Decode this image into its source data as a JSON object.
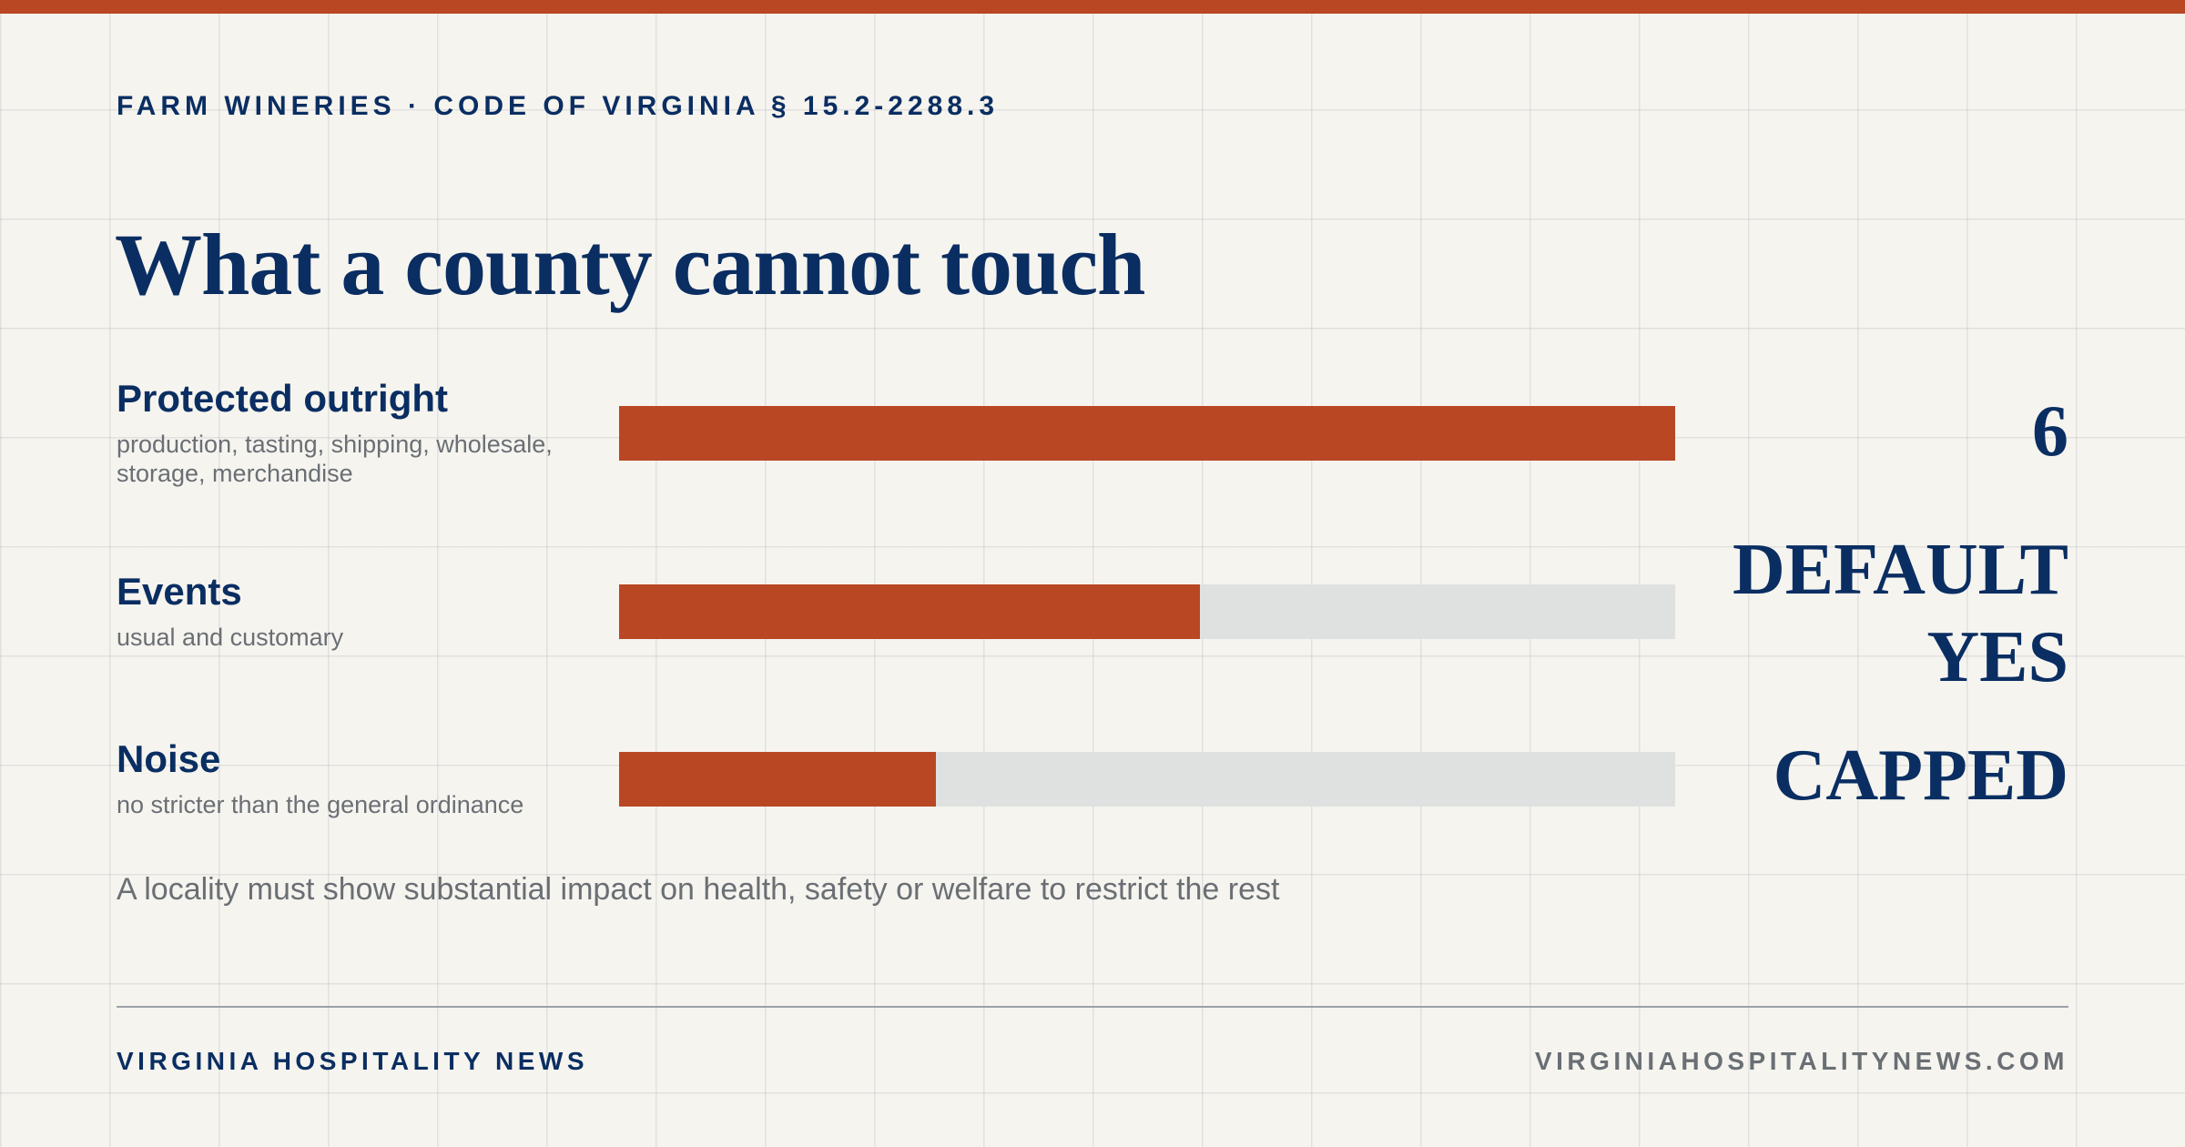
{
  "kicker": "FARM WINERIES · CODE OF VIRGINIA § 15.2-2288.3",
  "title": "What a county cannot touch",
  "colors": {
    "accent": "#b94724",
    "navy": "#0a2e62",
    "track": "#dfe1e1",
    "muted": "#6a6f74",
    "background": "#f6f4ef"
  },
  "chart_data": {
    "type": "bar",
    "orientation": "horizontal",
    "title": "What a county cannot touch",
    "xlim": [
      0,
      1
    ],
    "categories": [
      "Protected outright",
      "Events",
      "Noise"
    ],
    "subtitles": [
      "production, tasting, shipping, wholesale, storage, merchandise",
      "usual and customary",
      "no stricter than the general ordinance"
    ],
    "values": [
      1.0,
      0.55,
      0.3
    ],
    "value_labels": [
      "6",
      "DEFAULT YES",
      "CAPPED"
    ],
    "grid": true,
    "legend": "none"
  },
  "note": "A locality must show substantial impact on health, safety or welfare to restrict the rest",
  "footer": {
    "brand": "VIRGINIA HOSPITALITY NEWS",
    "site": "VIRGINIAHOSPITALITYNEWS.COM"
  }
}
